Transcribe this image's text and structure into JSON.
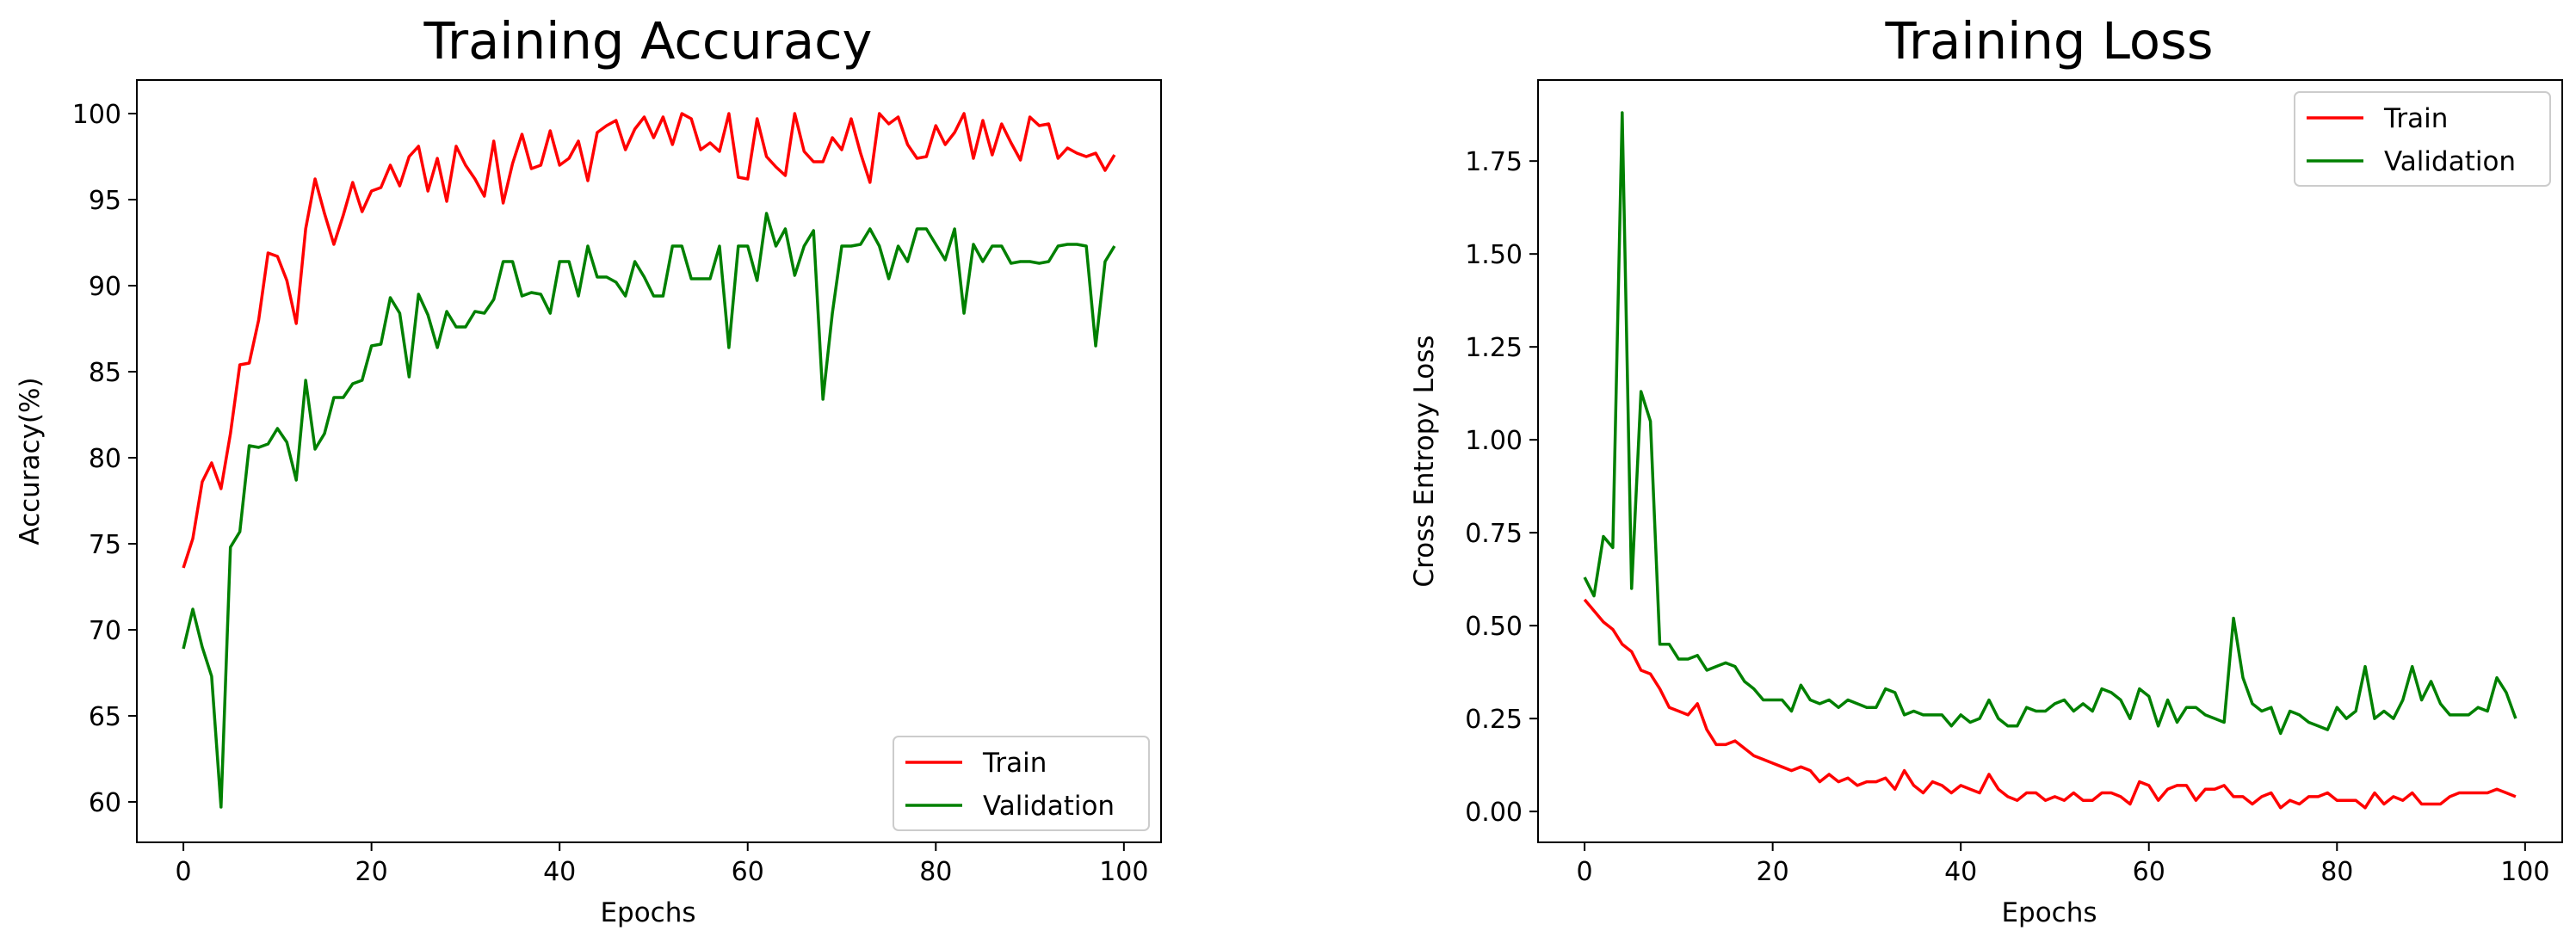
{
  "chart_data": [
    {
      "type": "line",
      "title": "Training Accuracy",
      "xlabel": "Epochs",
      "ylabel": "Accuracy(%)",
      "xlim": [
        -4.95,
        103.95
      ],
      "ylim": [
        57.65,
        101.95
      ],
      "xticks": [
        0,
        20,
        40,
        60,
        80,
        100
      ],
      "xtick_labels": [
        "0",
        "20",
        "40",
        "60",
        "80",
        "100"
      ],
      "yticks": [
        60,
        65,
        70,
        75,
        80,
        85,
        90,
        95,
        100
      ],
      "ytick_labels": [
        "60",
        "65",
        "70",
        "75",
        "80",
        "85",
        "90",
        "95",
        "100"
      ],
      "legend_location": "lower right",
      "series": [
        {
          "name": "Train",
          "color": "#ff0000",
          "values": [
            73.6,
            75.3,
            78.6,
            79.7,
            78.2,
            81.4,
            85.4,
            85.5,
            88.0,
            91.9,
            91.7,
            90.3,
            87.8,
            93.3,
            96.2,
            94.2,
            92.4,
            94.1,
            96.0,
            94.3,
            95.5,
            95.7,
            97.0,
            95.8,
            97.5,
            98.1,
            95.5,
            97.4,
            94.9,
            98.1,
            97.0,
            96.2,
            95.2,
            98.4,
            94.8,
            97.1,
            98.8,
            96.8,
            97.0,
            99.0,
            97.0,
            97.4,
            98.4,
            96.1,
            98.9,
            99.3,
            99.6,
            97.9,
            99.1,
            99.8,
            98.6,
            99.8,
            98.2,
            100.0,
            99.7,
            97.9,
            98.3,
            97.8,
            100.0,
            96.3,
            96.2,
            99.7,
            97.5,
            96.9,
            96.4,
            100.0,
            97.8,
            97.2,
            97.2,
            98.6,
            97.9,
            99.7,
            97.7,
            96.0,
            100.0,
            99.4,
            99.8,
            98.2,
            97.4,
            97.5,
            99.3,
            98.2,
            98.9,
            100.0,
            97.4,
            99.6,
            97.6,
            99.4,
            98.3,
            97.3,
            99.8,
            99.3,
            99.4,
            97.4,
            98.0,
            97.7,
            97.5,
            97.7,
            96.7,
            97.6
          ]
        },
        {
          "name": "Validation",
          "color": "#008000",
          "values": [
            68.9,
            71.2,
            69.0,
            67.3,
            59.7,
            74.8,
            75.7,
            80.7,
            80.6,
            80.8,
            81.7,
            80.9,
            78.7,
            84.5,
            80.5,
            81.4,
            83.5,
            83.5,
            84.3,
            84.5,
            86.5,
            86.6,
            89.3,
            88.4,
            84.7,
            89.5,
            88.3,
            86.4,
            88.5,
            87.6,
            87.6,
            88.5,
            88.4,
            89.2,
            91.4,
            91.4,
            89.4,
            89.6,
            89.5,
            88.4,
            91.4,
            91.4,
            89.4,
            92.3,
            90.5,
            90.5,
            90.2,
            89.4,
            91.4,
            90.5,
            89.4,
            89.4,
            92.3,
            92.3,
            90.4,
            90.4,
            90.4,
            92.3,
            86.4,
            92.3,
            92.3,
            90.3,
            94.2,
            92.3,
            93.3,
            90.6,
            92.3,
            93.2,
            83.4,
            88.4,
            92.3,
            92.3,
            92.4,
            93.3,
            92.3,
            90.4,
            92.3,
            91.4,
            93.3,
            93.3,
            92.4,
            91.5,
            93.3,
            88.4,
            92.4,
            91.4,
            92.3,
            92.3,
            91.3,
            91.4,
            91.4,
            91.3,
            91.4,
            92.3,
            92.4,
            92.4,
            92.3,
            86.5,
            91.4,
            92.3
          ]
        }
      ]
    },
    {
      "type": "line",
      "title": "Training Loss",
      "xlabel": "Epochs",
      "ylabel": "Cross Entropy Loss",
      "xlim": [
        -4.95,
        103.95
      ],
      "ylim": [
        -0.083,
        1.968
      ],
      "xticks": [
        0,
        20,
        40,
        60,
        80,
        100
      ],
      "xtick_labels": [
        "0",
        "20",
        "40",
        "60",
        "80",
        "100"
      ],
      "yticks": [
        0.0,
        0.25,
        0.5,
        0.75,
        1.0,
        1.25,
        1.5,
        1.75
      ],
      "ytick_labels": [
        "0.00",
        "0.25",
        "0.50",
        "0.75",
        "1.00",
        "1.25",
        "1.50",
        "1.75"
      ],
      "legend_location": "upper right",
      "series": [
        {
          "name": "Train",
          "color": "#ff0000",
          "values": [
            0.57,
            0.54,
            0.51,
            0.49,
            0.45,
            0.43,
            0.38,
            0.37,
            0.33,
            0.28,
            0.27,
            0.26,
            0.29,
            0.22,
            0.18,
            0.18,
            0.19,
            0.17,
            0.15,
            0.14,
            0.13,
            0.12,
            0.11,
            0.12,
            0.11,
            0.08,
            0.1,
            0.08,
            0.09,
            0.07,
            0.08,
            0.08,
            0.09,
            0.06,
            0.11,
            0.07,
            0.05,
            0.08,
            0.07,
            0.05,
            0.07,
            0.06,
            0.05,
            0.1,
            0.06,
            0.04,
            0.03,
            0.05,
            0.05,
            0.03,
            0.04,
            0.03,
            0.05,
            0.03,
            0.03,
            0.05,
            0.05,
            0.04,
            0.02,
            0.08,
            0.07,
            0.03,
            0.06,
            0.07,
            0.07,
            0.03,
            0.06,
            0.06,
            0.07,
            0.04,
            0.04,
            0.02,
            0.04,
            0.05,
            0.01,
            0.03,
            0.02,
            0.04,
            0.04,
            0.05,
            0.03,
            0.03,
            0.03,
            0.01,
            0.05,
            0.02,
            0.04,
            0.03,
            0.05,
            0.02,
            0.02,
            0.02,
            0.04,
            0.05,
            0.05,
            0.05,
            0.05,
            0.06,
            0.05,
            0.04
          ]
        },
        {
          "name": "Validation",
          "color": "#008000",
          "values": [
            0.63,
            0.58,
            0.74,
            0.71,
            1.88,
            0.6,
            1.13,
            1.05,
            0.45,
            0.45,
            0.41,
            0.41,
            0.42,
            0.38,
            0.39,
            0.4,
            0.39,
            0.35,
            0.33,
            0.3,
            0.3,
            0.3,
            0.27,
            0.34,
            0.3,
            0.29,
            0.3,
            0.28,
            0.3,
            0.29,
            0.28,
            0.28,
            0.33,
            0.32,
            0.26,
            0.27,
            0.26,
            0.26,
            0.26,
            0.23,
            0.26,
            0.24,
            0.25,
            0.3,
            0.25,
            0.23,
            0.23,
            0.28,
            0.27,
            0.27,
            0.29,
            0.3,
            0.27,
            0.29,
            0.27,
            0.33,
            0.32,
            0.3,
            0.25,
            0.33,
            0.31,
            0.23,
            0.3,
            0.24,
            0.28,
            0.28,
            0.26,
            0.25,
            0.24,
            0.52,
            0.36,
            0.29,
            0.27,
            0.28,
            0.21,
            0.27,
            0.26,
            0.24,
            0.23,
            0.22,
            0.28,
            0.25,
            0.27,
            0.39,
            0.25,
            0.27,
            0.25,
            0.3,
            0.39,
            0.3,
            0.35,
            0.29,
            0.26,
            0.26,
            0.26,
            0.28,
            0.27,
            0.36,
            0.32,
            0.25
          ]
        }
      ]
    }
  ]
}
